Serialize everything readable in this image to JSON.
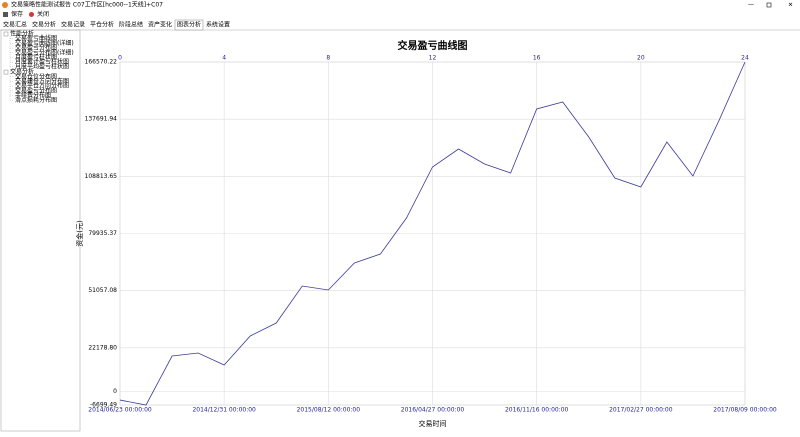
{
  "window": {
    "title": "交易策略性能测试报告 C07工作区[hc000--1天线]+C07",
    "toolbar": [
      "保存",
      "关闭"
    ],
    "tabs": [
      "交易汇总",
      "交易分析",
      "交易记录",
      "平仓分析",
      "阶段总结",
      "资产变化",
      "图表分析",
      "系统设置"
    ],
    "active_tab": 6,
    "tree": [
      {
        "label": "性能分析",
        "items": [
          "交易盈亏曲线图",
          "交易盈亏曲线图(详细)",
          "交易盈亏分布图",
          "交易盈亏分布图(详细)",
          "月度盈亏柱状图",
          "月度累计盈亏柱状图",
          "月度平均盈亏柱状图"
        ]
      },
      {
        "label": "交易分析",
        "items": [
          "交易仓位分布图",
          "交易建仓方向分布图",
          "交易平仓方向分布图",
          "交易盈亏分布图",
          "手续费分布图",
          "滑点损耗分布图"
        ]
      }
    ]
  },
  "chart_data": {
    "type": "line",
    "title": "交易盈亏曲线图",
    "x_label": "交易时间",
    "y_label": "资金(元)",
    "x": [
      0,
      1,
      2,
      3,
      4,
      5,
      6,
      7,
      8,
      9,
      10,
      11,
      12,
      13,
      14,
      15,
      16,
      17,
      18,
      19,
      20,
      21,
      22,
      23,
      24
    ],
    "values": [
      -4200,
      -6699.49,
      18050,
      19570,
      13510,
      28160,
      34720,
      53410,
      51390,
      65030,
      69580,
      87760,
      113530,
      122620,
      115040,
      110500,
      142830,
      146360,
      128690,
      107970,
      103430,
      126160,
      108980,
      137000,
      166570.22
    ],
    "color": "#3b3b9a",
    "xlim": [
      0,
      24
    ],
    "xticks": [
      0,
      4,
      8,
      12,
      16,
      20,
      24
    ],
    "x_tick_dates": [
      "2014/06/23 00:00:00",
      "2014/12/31 00:00:00",
      "2015/08/12 00:00:00",
      "2016/04/27 00:00:00",
      "2016/11/16 00:00:00",
      "2017/02/27 00:00:00",
      "2017/08/09 00:00:00"
    ],
    "ylim": [
      -6699.49,
      166570.22
    ],
    "yticks": [
      -6699.49,
      0,
      {
        "value": 22178.8,
        "label": "22178.80"
      },
      {
        "value": 51057.08,
        "label": "51057.08"
      },
      {
        "value": 79935.37,
        "label": "79935.37"
      },
      {
        "value": 108813.65,
        "label": "108813.65"
      },
      {
        "value": 137691.94,
        "label": "137691.94"
      },
      166570.22
    ],
    "grid": true
  }
}
